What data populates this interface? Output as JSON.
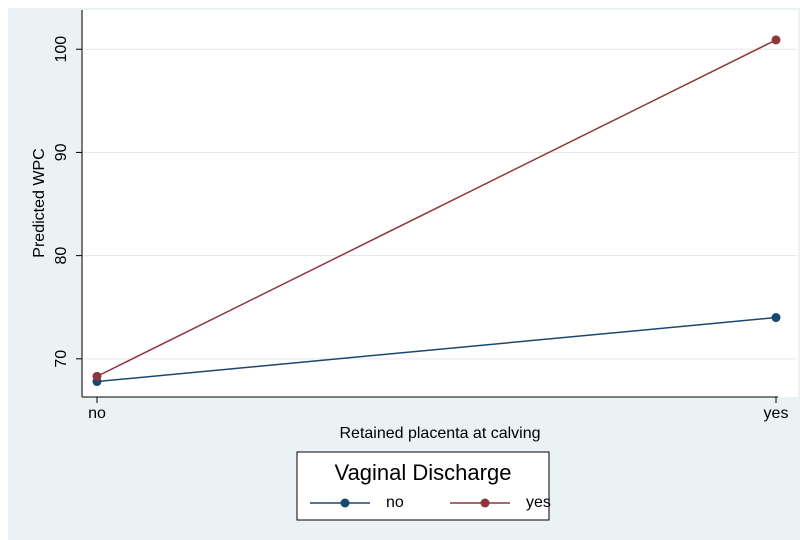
{
  "chart_data": {
    "type": "line",
    "x_label": "Retained placenta at calving",
    "y_label": "Predicted WPC",
    "categories": [
      "no",
      "yes"
    ],
    "series": [
      {
        "name": "no",
        "color": "#1a476f",
        "values": [
          67.8,
          74
        ]
      },
      {
        "name": "yes",
        "color": "#90353b",
        "values": [
          68.3,
          100.9
        ]
      }
    ],
    "ylim": [
      66.3,
      103.8
    ],
    "yticks": [
      70,
      80,
      90,
      100
    ],
    "grid": true,
    "legend_title": "Vaginal Discharge",
    "legend_position": "bottom"
  }
}
